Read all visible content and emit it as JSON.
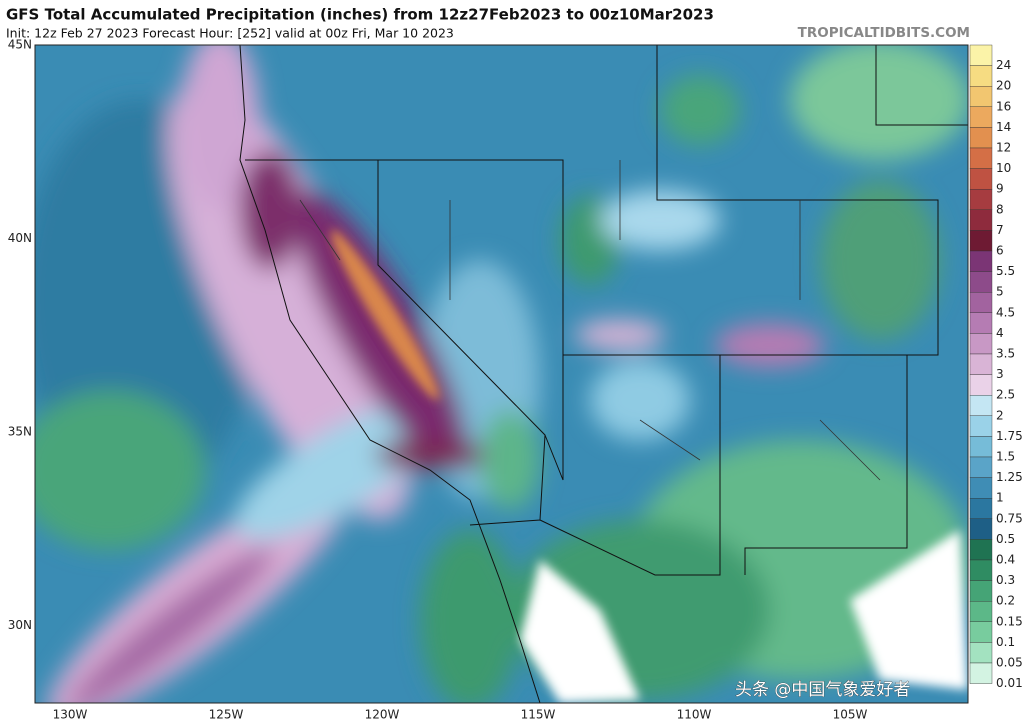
{
  "header": {
    "title": "GFS Total Accumulated Precipitation (inches) from 12z27Feb2023 to 00z10Mar2023",
    "subtitle": "Init: 12z Feb 27 2023   Forecast Hour: [252]   valid at 00z Fri, Mar 10 2023",
    "credit": "TROPICALTIDBITS.COM"
  },
  "map": {
    "lat_labels": [
      "45N",
      "40N",
      "35N",
      "30N"
    ],
    "lon_labels": [
      "130W",
      "125W",
      "120W",
      "115W",
      "110W",
      "105W"
    ]
  },
  "colorbar": {
    "levels": [
      {
        "value": 24,
        "color": "#fbf3a8"
      },
      {
        "value": 20,
        "color": "#f6dc82"
      },
      {
        "value": 16,
        "color": "#f2c670"
      },
      {
        "value": 14,
        "color": "#eca95e"
      },
      {
        "value": 12,
        "color": "#e2904f"
      },
      {
        "value": 10,
        "color": "#d46f46"
      },
      {
        "value": 9,
        "color": "#bf5242"
      },
      {
        "value": 8,
        "color": "#a63c40"
      },
      {
        "value": 7,
        "color": "#8e2b3d"
      },
      {
        "value": 6,
        "color": "#6e1a33"
      },
      {
        "value": 5.5,
        "color": "#7b3575"
      },
      {
        "value": 5,
        "color": "#8d4b8a"
      },
      {
        "value": 4.5,
        "color": "#a2639f"
      },
      {
        "value": 4,
        "color": "#b57cb3"
      },
      {
        "value": 3.5,
        "color": "#c898c5"
      },
      {
        "value": 3,
        "color": "#d9b4d6"
      },
      {
        "value": 2.5,
        "color": "#ead2e8"
      },
      {
        "value": 2,
        "color": "#c4e6f3"
      },
      {
        "value": 1.75,
        "color": "#9ad2e8"
      },
      {
        "value": 1.5,
        "color": "#76bcd8"
      },
      {
        "value": 1.25,
        "color": "#5aa4c8"
      },
      {
        "value": 1,
        "color": "#3f8db5"
      },
      {
        "value": 0.75,
        "color": "#2b77a0"
      },
      {
        "value": 0.5,
        "color": "#1e5f86"
      },
      {
        "value": 0.4,
        "color": "#1f7352"
      },
      {
        "value": 0.3,
        "color": "#2f8c62"
      },
      {
        "value": 0.2,
        "color": "#45a476"
      },
      {
        "value": 0.15,
        "color": "#5cb888"
      },
      {
        "value": 0.1,
        "color": "#78cc9e"
      },
      {
        "value": 0.05,
        "color": "#a3e2c0"
      },
      {
        "value": 0.01,
        "color": "#d3f3e2"
      }
    ]
  },
  "watermark": "头条 @中国气象爱好者"
}
